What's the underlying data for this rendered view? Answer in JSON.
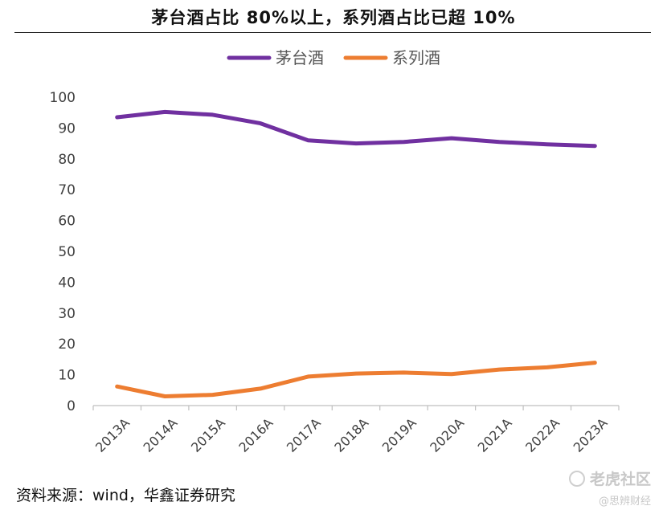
{
  "header": {
    "title": "茅台酒占比 80%以上，系列酒占比已超 10%"
  },
  "footer": {
    "source": "资料来源：wind，华鑫证券研究"
  },
  "watermark": {
    "main": "老虎社区",
    "sub": "@思辨财经",
    "icon": "tiger-community-logo-icon"
  },
  "chart_data": {
    "type": "line",
    "title": "茅台酒占比 80%以上，系列酒占比已超 10%",
    "categories": [
      "2013A",
      "2014A",
      "2015A",
      "2016A",
      "2017A",
      "2018A",
      "2019A",
      "2020A",
      "2021A",
      "2022A",
      "2023A"
    ],
    "series": [
      {
        "name": "茅台酒",
        "color": "#7030a0",
        "values": [
          93.5,
          95.2,
          94.3,
          91.5,
          86.0,
          85.0,
          85.5,
          86.7,
          85.5,
          84.7,
          84.2
        ]
      },
      {
        "name": "系列酒",
        "color": "#ed7d31",
        "values": [
          6.2,
          3.0,
          3.5,
          5.5,
          9.4,
          10.4,
          10.7,
          10.2,
          11.7,
          12.4,
          13.9
        ]
      }
    ],
    "yticks": [
      "0",
      "10",
      "20",
      "30",
      "40",
      "50",
      "60",
      "70",
      "80",
      "90",
      "100"
    ],
    "ylim": [
      0,
      100
    ],
    "xlabel": "",
    "ylabel": "",
    "legend": "top-center",
    "grid": false
  }
}
